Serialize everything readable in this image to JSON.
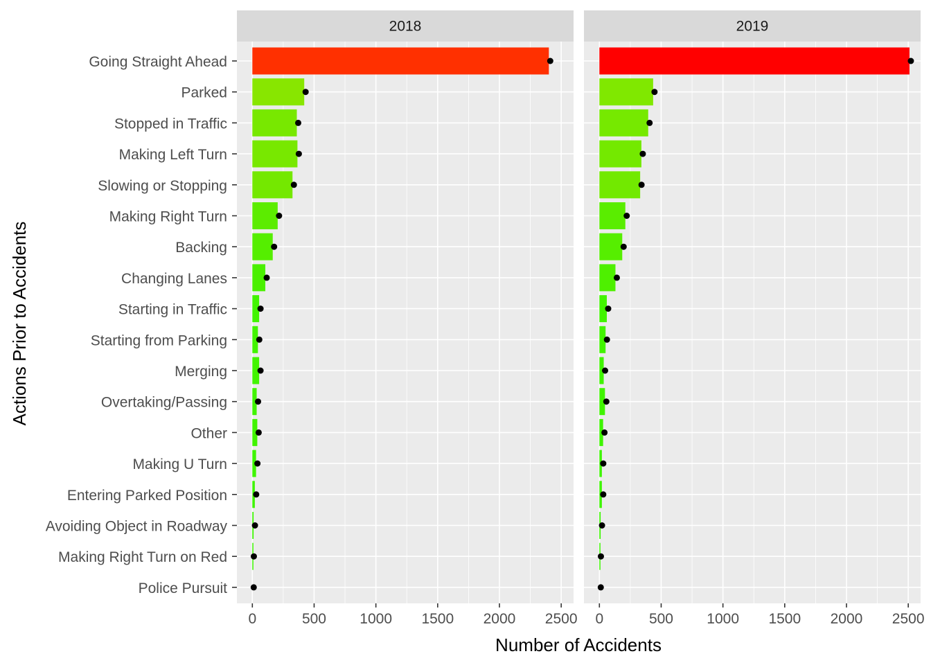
{
  "chart_data": {
    "type": "bar",
    "orientation": "horizontal",
    "xlabel": "Number of Accidents",
    "ylabel": "Actions Prior to Accidents",
    "xlim": [
      -125,
      2600
    ],
    "x_ticks": [
      0,
      500,
      1000,
      1500,
      2000,
      2500
    ],
    "grid": true,
    "legend": "none",
    "categories": [
      "Going Straight Ahead",
      "Parked",
      "Stopped in Traffic",
      "Making Left Turn",
      "Slowing or Stopping",
      "Making Right Turn",
      "Backing",
      "Changing Lanes",
      "Starting in Traffic",
      "Starting from Parking",
      "Merging",
      "Overtaking/Passing",
      "Other",
      "Making U Turn",
      "Entering Parked Position",
      "Avoiding Object in Roadway",
      "Making Right Turn on Red",
      "Police Pursuit"
    ],
    "panels": [
      {
        "label": "2018",
        "values": [
          2400,
          420,
          360,
          365,
          325,
          205,
          165,
          105,
          55,
          45,
          55,
          35,
          40,
          30,
          20,
          10,
          1,
          0
        ],
        "colors": [
          "#FF3000",
          "#88E600",
          "#78E800",
          "#78E800",
          "#74E800",
          "#5CEC00",
          "#55EE00",
          "#4AF000",
          "#42F400",
          "#42F400",
          "#42F400",
          "#40F400",
          "#40F400",
          "#3EF500",
          "#3EF500",
          "#3CF600",
          "#3CF600",
          "#3CF600"
        ]
      },
      {
        "label": "2019",
        "values": [
          2510,
          435,
          395,
          340,
          330,
          210,
          185,
          130,
          60,
          50,
          35,
          45,
          30,
          20,
          20,
          10,
          1,
          0
        ],
        "colors": [
          "#FF0000",
          "#80E800",
          "#76E900",
          "#74E900",
          "#72E900",
          "#5AED00",
          "#56EE00",
          "#4EF000",
          "#42F400",
          "#42F400",
          "#40F400",
          "#40F400",
          "#3EF500",
          "#3EF500",
          "#3EF500",
          "#3CF600",
          "#3CF600",
          "#3CF600"
        ]
      }
    ]
  }
}
